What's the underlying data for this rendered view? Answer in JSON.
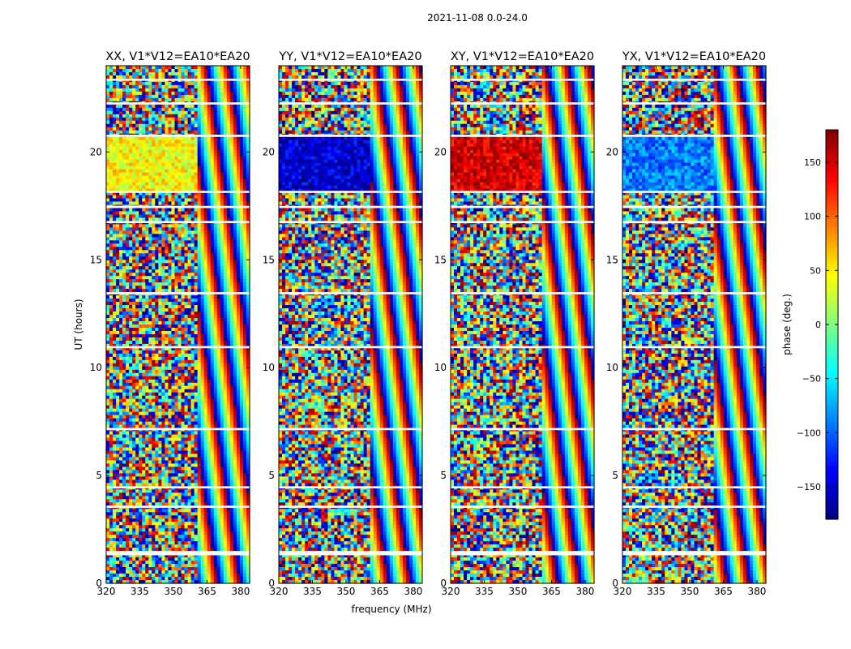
{
  "chart_data": {
    "type": "heatmap",
    "title": "2021-11-08 0.0-24.0",
    "xlabel": "frequency (MHz)",
    "ylabel": "UT (hours)",
    "xlim": [
      320,
      384
    ],
    "ylim": [
      0,
      24
    ],
    "xticks": [
      320,
      335,
      350,
      365,
      380
    ],
    "yticks": [
      0,
      5,
      10,
      15,
      20
    ],
    "panels": [
      {
        "title": "XX, V1*V12=EA10*EA20",
        "dominant_phase_block": {
          "ut_range": [
            18.2,
            20.7
          ],
          "freq_range": [
            320,
            361
          ],
          "phase_deg": 45
        }
      },
      {
        "title": "YY, V1*V12=EA10*EA20",
        "dominant_phase_block": {
          "ut_range": [
            18.2,
            20.7
          ],
          "freq_range": [
            320,
            360
          ],
          "phase_deg": -150
        }
      },
      {
        "title": "XY, V1*V12=EA10*EA20",
        "dominant_phase_block": {
          "ut_range": [
            18.2,
            20.7
          ],
          "freq_range": [
            320,
            360
          ],
          "phase_deg": 150
        }
      },
      {
        "title": "YX, V1*V12=EA10*EA20",
        "dominant_phase_block": {
          "ut_range": [
            18.2,
            20.7
          ],
          "freq_range": [
            320,
            360
          ],
          "phase_deg": -90
        }
      }
    ],
    "flagged_ut_ranges": [
      [
        1.3,
        1.5
      ],
      [
        3.5,
        3.6
      ],
      [
        4.4,
        4.5
      ],
      [
        7.1,
        7.2
      ],
      [
        10.9,
        11.0
      ],
      [
        13.4,
        13.5
      ],
      [
        16.7,
        16.8
      ],
      [
        17.4,
        17.5
      ],
      [
        18.1,
        18.2
      ],
      [
        20.7,
        20.8
      ],
      [
        22.2,
        22.3
      ],
      [
        23.3,
        23.4
      ]
    ],
    "colorbar": {
      "label": "phase (deg.)",
      "range": [
        -180,
        180
      ],
      "ticks": [
        150,
        100,
        50,
        0,
        -50,
        -100,
        -150
      ],
      "ticklabels": [
        "150",
        "100",
        "50",
        "0",
        "−50",
        "−100",
        "−150"
      ],
      "colormap": "jet"
    }
  }
}
